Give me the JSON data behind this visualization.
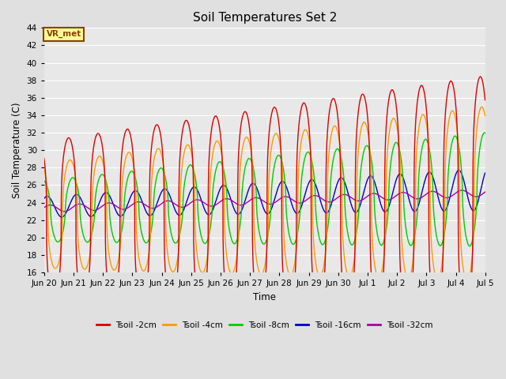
{
  "title": "Soil Temperatures Set 2",
  "xlabel": "Time",
  "ylabel": "Soil Temperature (C)",
  "ylim": [
    16,
    44
  ],
  "yticks": [
    16,
    18,
    20,
    22,
    24,
    26,
    28,
    30,
    32,
    34,
    36,
    38,
    40,
    42,
    44
  ],
  "bg_color": "#e0e0e0",
  "plot_bg_color": "#e8e8e8",
  "grid_color": "white",
  "series": [
    {
      "label": "Tsoil -2cm",
      "color": "#dd0000"
    },
    {
      "label": "Tsoil -4cm",
      "color": "#ff9900"
    },
    {
      "label": "Tsoil -8cm",
      "color": "#00cc00"
    },
    {
      "label": "Tsoil -16cm",
      "color": "#0000cc"
    },
    {
      "label": "Tsoil -32cm",
      "color": "#aa00aa"
    }
  ],
  "annotation_text": "VR_met",
  "annotation_bg": "#ffff99",
  "annotation_border": "#884400",
  "n_days": 15,
  "samples_per_day": 144
}
